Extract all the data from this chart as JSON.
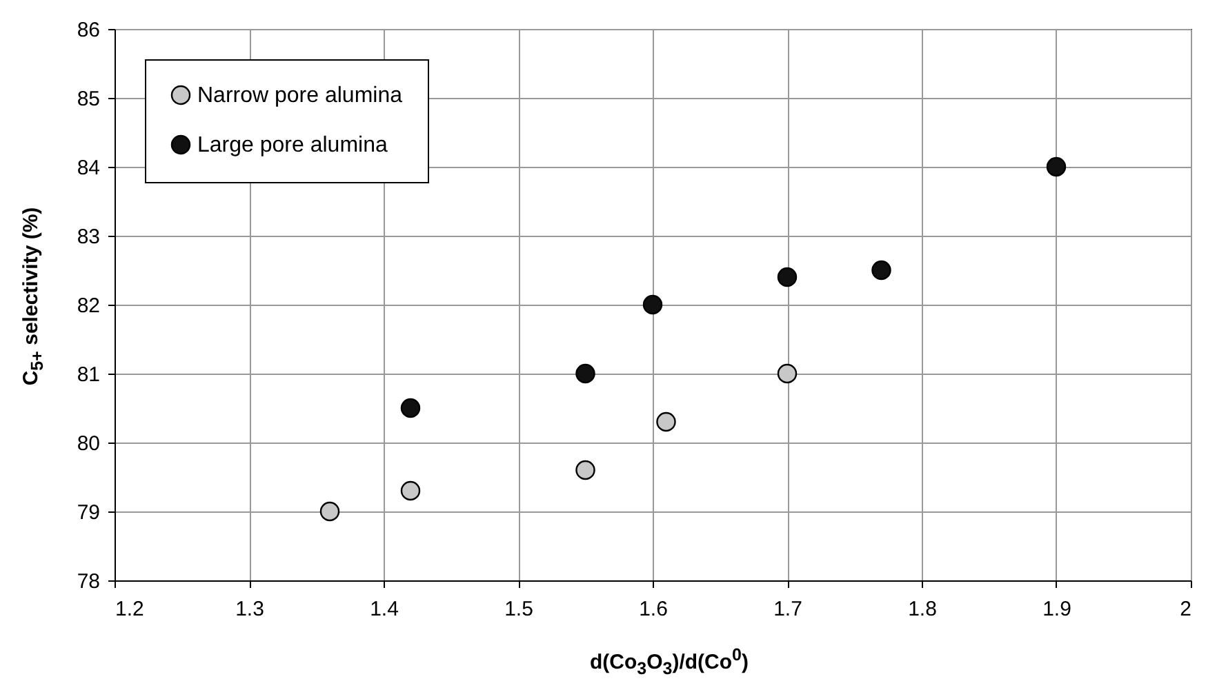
{
  "chart_data": {
    "type": "scatter",
    "xlabel": "d(Co$_{3}$O$_{3}$)/d(Co$^{0}$)",
    "ylabel": "C$_{5+}$ selectivity (%)",
    "series": [
      {
        "name": "Narrow pore alumina",
        "color": "#c8c8c8",
        "x": [
          1.36,
          1.42,
          1.55,
          1.61,
          1.7
        ],
        "values": [
          79,
          79.3,
          79.6,
          80.3,
          81
        ]
      },
      {
        "name": "Large pore alumina",
        "color": "#111111",
        "x": [
          1.42,
          1.55,
          1.6,
          1.7,
          1.77,
          1.9
        ],
        "values": [
          80.5,
          81,
          82,
          82.4,
          82.5,
          84
        ]
      }
    ],
    "xlim": [
      1.2,
      2
    ],
    "xticks": [
      1.2,
      1.3,
      1.4,
      1.5,
      1.6,
      1.7,
      1.8,
      1.9,
      2
    ],
    "ylim": [
      78,
      86
    ],
    "yticks": [
      78,
      79,
      80,
      81,
      82,
      83,
      84,
      85,
      86
    ],
    "grid": true,
    "legend": "top left",
    "marker": "circle"
  }
}
